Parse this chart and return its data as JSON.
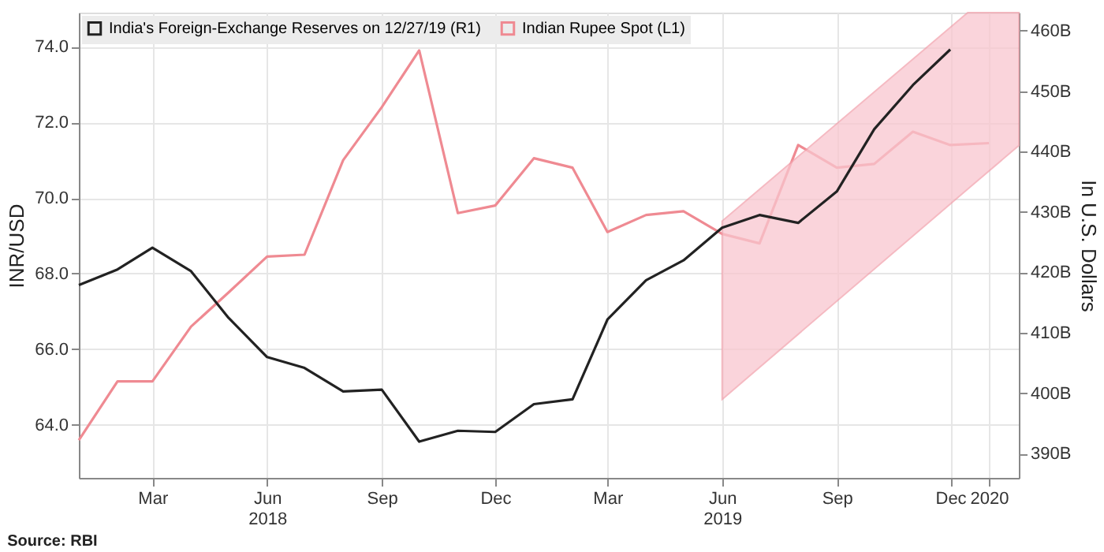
{
  "chart_data": {
    "type": "line",
    "ylabel": "INR/USD",
    "y2label": "In U.S. Dollars",
    "annotations": [
      "Source: RBI"
    ],
    "xlim": [
      "2018-01-01",
      "2020-01-25"
    ],
    "xticks": [
      {
        "value": "2018-03-01",
        "label": "Mar"
      },
      {
        "value": "2018-06-01",
        "label": "Jun\n2018"
      },
      {
        "value": "2018-09-01",
        "label": "Sep"
      },
      {
        "value": "2018-12-01",
        "label": "Dec"
      },
      {
        "value": "2019-03-01",
        "label": "Mar"
      },
      {
        "value": "2019-06-01",
        "label": "Jun\n2019"
      },
      {
        "value": "2019-09-01",
        "label": "Sep"
      },
      {
        "value": "2019-12-01",
        "label": "Dec"
      },
      {
        "value": "2020-01-01",
        "label": "2020"
      }
    ],
    "ylim": [
      62.6,
      74.9
    ],
    "yticks": [
      {
        "value": 64,
        "label": "64.0"
      },
      {
        "value": 66,
        "label": "66.0"
      },
      {
        "value": 68,
        "label": "68.0"
      },
      {
        "value": 70,
        "label": "70.0"
      },
      {
        "value": 72,
        "label": "72.0"
      },
      {
        "value": 74,
        "label": "74.0"
      }
    ],
    "y2lim": [
      386,
      463
    ],
    "y2ticks": [
      {
        "value": 390,
        "label": "390B"
      },
      {
        "value": 400,
        "label": "400B"
      },
      {
        "value": 410,
        "label": "410B"
      },
      {
        "value": 420,
        "label": "420B"
      },
      {
        "value": 430,
        "label": "430B"
      },
      {
        "value": 440,
        "label": "440B"
      },
      {
        "value": 450,
        "label": "450B"
      },
      {
        "value": 460,
        "label": "460B"
      }
    ],
    "grid": true,
    "legend": "top left",
    "line_style": "solid",
    "series": [
      {
        "type": "area",
        "axis": "y2",
        "color": "#f9c6cf",
        "x": [
          "2019-06-01",
          "2019-12-15",
          "2020-01-25"
        ],
        "values": [
          null,
          null,
          null
        ],
        "lower": [
          399,
          433.8,
          441
        ],
        "upper": [
          428.5,
          463,
          463
        ]
      },
      {
        "axis": "y2",
        "name": "India's Foreign-Exchange Reserves on 12/27/19 (R1)",
        "color": "#222222",
        "x": [
          "2018-01-01",
          "2018-02-01",
          "2018-03-01",
          "2018-04-01",
          "2018-05-01",
          "2018-06-01",
          "2018-07-01",
          "2018-08-01",
          "2018-09-01",
          "2018-10-01",
          "2018-11-01",
          "2018-12-01",
          "2019-01-01",
          "2019-02-01",
          "2019-03-01",
          "2019-04-01",
          "2019-05-01",
          "2019-06-01",
          "2019-07-01",
          "2019-08-01",
          "2019-09-01",
          "2019-10-01",
          "2019-11-01",
          "2019-12-01"
        ],
        "values": [
          417.9,
          420.5,
          424.1,
          420.2,
          412.5,
          406,
          404.2,
          400.3,
          400.6,
          392,
          393.8,
          393.6,
          398.2,
          399,
          412.2,
          418.7,
          422,
          427.4,
          429.5,
          428.2,
          433.4,
          443.7,
          451,
          456.9
        ]
      },
      {
        "axis": "y",
        "name": "Indian Rupee Spot (L1)",
        "color": "#ef8a92",
        "x": [
          "2018-01-01",
          "2018-02-01",
          "2018-03-01",
          "2018-04-01",
          "2018-05-01",
          "2018-06-01",
          "2018-07-01",
          "2018-08-01",
          "2018-09-01",
          "2018-10-01",
          "2018-11-01",
          "2018-12-01",
          "2019-01-01",
          "2019-02-01",
          "2019-03-01",
          "2019-04-01",
          "2019-05-01",
          "2019-06-01",
          "2019-07-01",
          "2019-08-01",
          "2019-09-01",
          "2019-10-01",
          "2019-11-01",
          "2019-12-01",
          "2020-01-01"
        ],
        "values": [
          63.6,
          65.15,
          65.15,
          66.6,
          67.5,
          68.45,
          68.5,
          71.0,
          72.4,
          73.9,
          69.6,
          69.8,
          71.05,
          70.8,
          69.1,
          69.55,
          69.65,
          69.05,
          68.8,
          71.4,
          70.8,
          70.9,
          71.75,
          71.4,
          71.45
        ]
      }
    ]
  }
}
